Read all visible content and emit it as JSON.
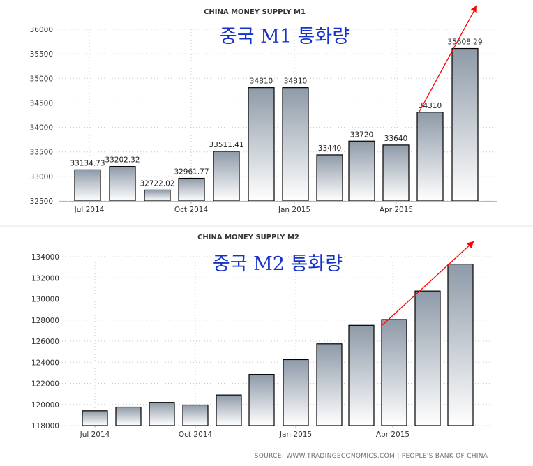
{
  "charts": [
    {
      "title": "CHINA MONEY SUPPLY M1",
      "annotation": "중국 M1 통화량",
      "arrow_color": "#ff0000"
    },
    {
      "title": "CHINA MONEY SUPPLY M2",
      "annotation": "중국 M2 통화량",
      "arrow_color": "#ff0000"
    }
  ],
  "source_text": "SOURCE: WWW.TRADINGECONOMICS.COM | PEOPLE'S BANK OF CHINA",
  "chart_data": [
    {
      "type": "bar",
      "title": "CHINA MONEY SUPPLY M1",
      "categories": [
        "2014-06",
        "2014-07",
        "2014-08",
        "2014-09",
        "2014-10",
        "2014-11",
        "2014-12",
        "2015-01",
        "2015-02",
        "2015-03",
        "2015-04",
        "2015-05"
      ],
      "values": [
        33134.73,
        33202.32,
        32722.02,
        32961.77,
        33511.41,
        34810,
        34810,
        33440,
        33720,
        33640,
        34310,
        35608.29
      ],
      "data_labels": [
        "33134.73",
        "33202.32",
        "32722.02",
        "32961.77",
        "33511.41",
        "34810",
        "34810",
        "33440",
        "33720",
        "33640",
        "34310",
        "35608.29"
      ],
      "x_tick_labels": [
        "Jul 2014",
        "Oct 2014",
        "Jan 2015",
        "Apr 2015"
      ],
      "y_ticks": [
        32500,
        33000,
        33500,
        34000,
        34500,
        35000,
        35500,
        36000
      ],
      "y_tick_labels": [
        "32500",
        "33000",
        "33500",
        "34000",
        "34500",
        "35000",
        "35500",
        "36000"
      ],
      "ylim": [
        32500,
        36000
      ],
      "grid": true,
      "bar_gradient": [
        "#8e9aa8",
        "#ffffff"
      ],
      "bar_outline": "#000000"
    },
    {
      "type": "bar",
      "title": "CHINA MONEY SUPPLY M2",
      "categories": [
        "2014-06",
        "2014-07",
        "2014-08",
        "2014-09",
        "2014-10",
        "2014-11",
        "2014-12",
        "2015-01",
        "2015-02",
        "2015-03",
        "2015-04",
        "2015-05"
      ],
      "values": [
        119400,
        119750,
        120200,
        119950,
        120900,
        122850,
        124250,
        125750,
        127500,
        128050,
        130750,
        133300
      ],
      "x_tick_labels": [
        "Jul 2014",
        "Oct 2014",
        "Jan 2015",
        "Apr 2015"
      ],
      "y_ticks": [
        118000,
        120000,
        122000,
        124000,
        126000,
        128000,
        130000,
        132000,
        134000
      ],
      "y_tick_labels": [
        "118000",
        "120000",
        "122000",
        "124000",
        "126000",
        "128000",
        "130000",
        "132000",
        "134000"
      ],
      "ylim": [
        118000,
        134000
      ],
      "grid": true,
      "bar_gradient": [
        "#8e9aa8",
        "#ffffff"
      ],
      "bar_outline": "#000000"
    }
  ]
}
